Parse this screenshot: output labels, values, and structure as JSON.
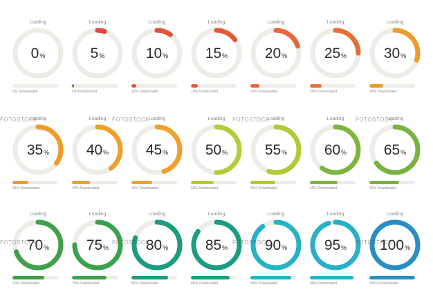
{
  "items": [
    {
      "label": "Loading",
      "value": 0,
      "color": "#e0473f",
      "caption": "0% Downloaded"
    },
    {
      "label": "Loading",
      "value": 5,
      "color": "#e0473f",
      "caption": "5% Downloaded"
    },
    {
      "label": "Loading",
      "value": 10,
      "color": "#e0533c",
      "caption": "10% Downloaded"
    },
    {
      "label": "Loading",
      "value": 15,
      "color": "#e25a3a",
      "caption": "15% Downloaded"
    },
    {
      "label": "Loading",
      "value": 20,
      "color": "#e5673a",
      "caption": "20% Downloaded"
    },
    {
      "label": "Loading",
      "value": 25,
      "color": "#e86d37",
      "caption": "25% Downloaded"
    },
    {
      "label": "Loading",
      "value": 30,
      "color": "#ee9a2c",
      "caption": "30% Downloaded"
    },
    {
      "label": "Loading",
      "value": 35,
      "color": "#ef9c2c",
      "caption": "35% Downloaded"
    },
    {
      "label": "Loading",
      "value": 40,
      "color": "#ef9f2c",
      "caption": "40% Downloaded"
    },
    {
      "label": "Loading",
      "value": 45,
      "color": "#efa12d",
      "caption": "45% Downloaded"
    },
    {
      "label": "Loading",
      "value": 50,
      "color": "#b6cb35",
      "caption": "50% Downloaded"
    },
    {
      "label": "Loading",
      "value": 55,
      "color": "#b1c934",
      "caption": "55% Downloaded"
    },
    {
      "label": "Loading",
      "value": 60,
      "color": "#7fb53f",
      "caption": "60% Downloaded"
    },
    {
      "label": "Loading",
      "value": 65,
      "color": "#7ab23f",
      "caption": "65% Downloaded"
    },
    {
      "label": "Loading",
      "value": 70,
      "color": "#3f9f4a",
      "caption": "70% Downloaded"
    },
    {
      "label": "Loading",
      "value": 75,
      "color": "#3ba14d",
      "caption": "75% Downloaded"
    },
    {
      "label": "Loading",
      "value": 80,
      "color": "#1d9b7e",
      "caption": "80% Downloaded"
    },
    {
      "label": "Loading",
      "value": 85,
      "color": "#1d9c81",
      "caption": "85% Downloaded"
    },
    {
      "label": "Loading",
      "value": 90,
      "color": "#25b3c6",
      "caption": "90% Downloaded"
    },
    {
      "label": "Loading",
      "value": 95,
      "color": "#27b0c8",
      "caption": "95% Downloaded"
    },
    {
      "label": "Loading",
      "value": 100,
      "color": "#2a8ec0",
      "caption": "100% Downloaded"
    }
  ],
  "percent_symbol": "%",
  "track_color": "#eeece6",
  "watermark": "FOTOSTOCK"
}
